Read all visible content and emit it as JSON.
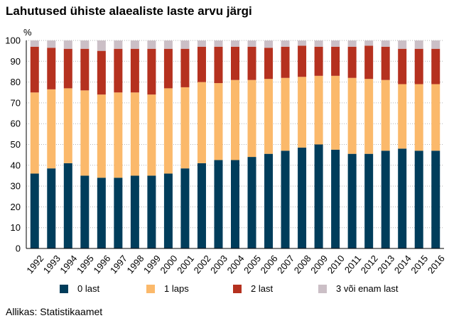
{
  "title": "Lahutused ühiste alaealiste laste arvu järgi",
  "source": "Allikas: Statistikaamet",
  "colors": {
    "s0": "#003d5b",
    "s1": "#fbb96b",
    "s2": "#b5311f",
    "s3": "#cbbfc6",
    "grid": "#b3b3b3",
    "axis": "#000000"
  },
  "chart_data": {
    "type": "bar",
    "stacked": true,
    "ylabel": "%",
    "ylim": [
      0,
      100
    ],
    "yticks": [
      0,
      10,
      20,
      30,
      40,
      50,
      60,
      70,
      80,
      90,
      100
    ],
    "grid": true,
    "legend_position": "bottom",
    "categories": [
      "1992",
      "1993",
      "1994",
      "1995",
      "1996",
      "1997",
      "1998",
      "1999",
      "2000",
      "2001",
      "2002",
      "2003",
      "2004",
      "2005",
      "2006",
      "2007",
      "2008",
      "2009",
      "2010",
      "2011",
      "2012",
      "2013",
      "2014",
      "2015",
      "2016"
    ],
    "series": [
      {
        "name": "0 last",
        "color": "#003d5b",
        "values": [
          36,
          38.5,
          41,
          35,
          34,
          34,
          35,
          35,
          36,
          38.5,
          41,
          42.5,
          42.5,
          44,
          45.5,
          47,
          48.5,
          50,
          47.5,
          45.5,
          45.5,
          47,
          48,
          47,
          47
        ]
      },
      {
        "name": "1 laps",
        "color": "#fbb96b",
        "values": [
          39,
          38,
          36,
          41,
          40,
          41,
          40,
          39,
          41,
          39,
          39,
          37,
          38.5,
          37,
          36,
          35,
          34,
          33,
          35.5,
          36.5,
          36,
          34,
          31,
          32,
          32
        ]
      },
      {
        "name": "2 last",
        "color": "#b5311f",
        "values": [
          22,
          20,
          19,
          20,
          21,
          21,
          21,
          22,
          19,
          18.5,
          17,
          17.5,
          16,
          16,
          15,
          15,
          15,
          14,
          14,
          15,
          16,
          16,
          17,
          17,
          17
        ]
      },
      {
        "name": "3 või enam last",
        "color": "#cbbfc6",
        "values": [
          3,
          3.5,
          4,
          4,
          5,
          4,
          4,
          4,
          4,
          4,
          3,
          3,
          3,
          3,
          3.5,
          3,
          2.5,
          3,
          3,
          3,
          2.5,
          3,
          4,
          4,
          4
        ]
      }
    ]
  }
}
